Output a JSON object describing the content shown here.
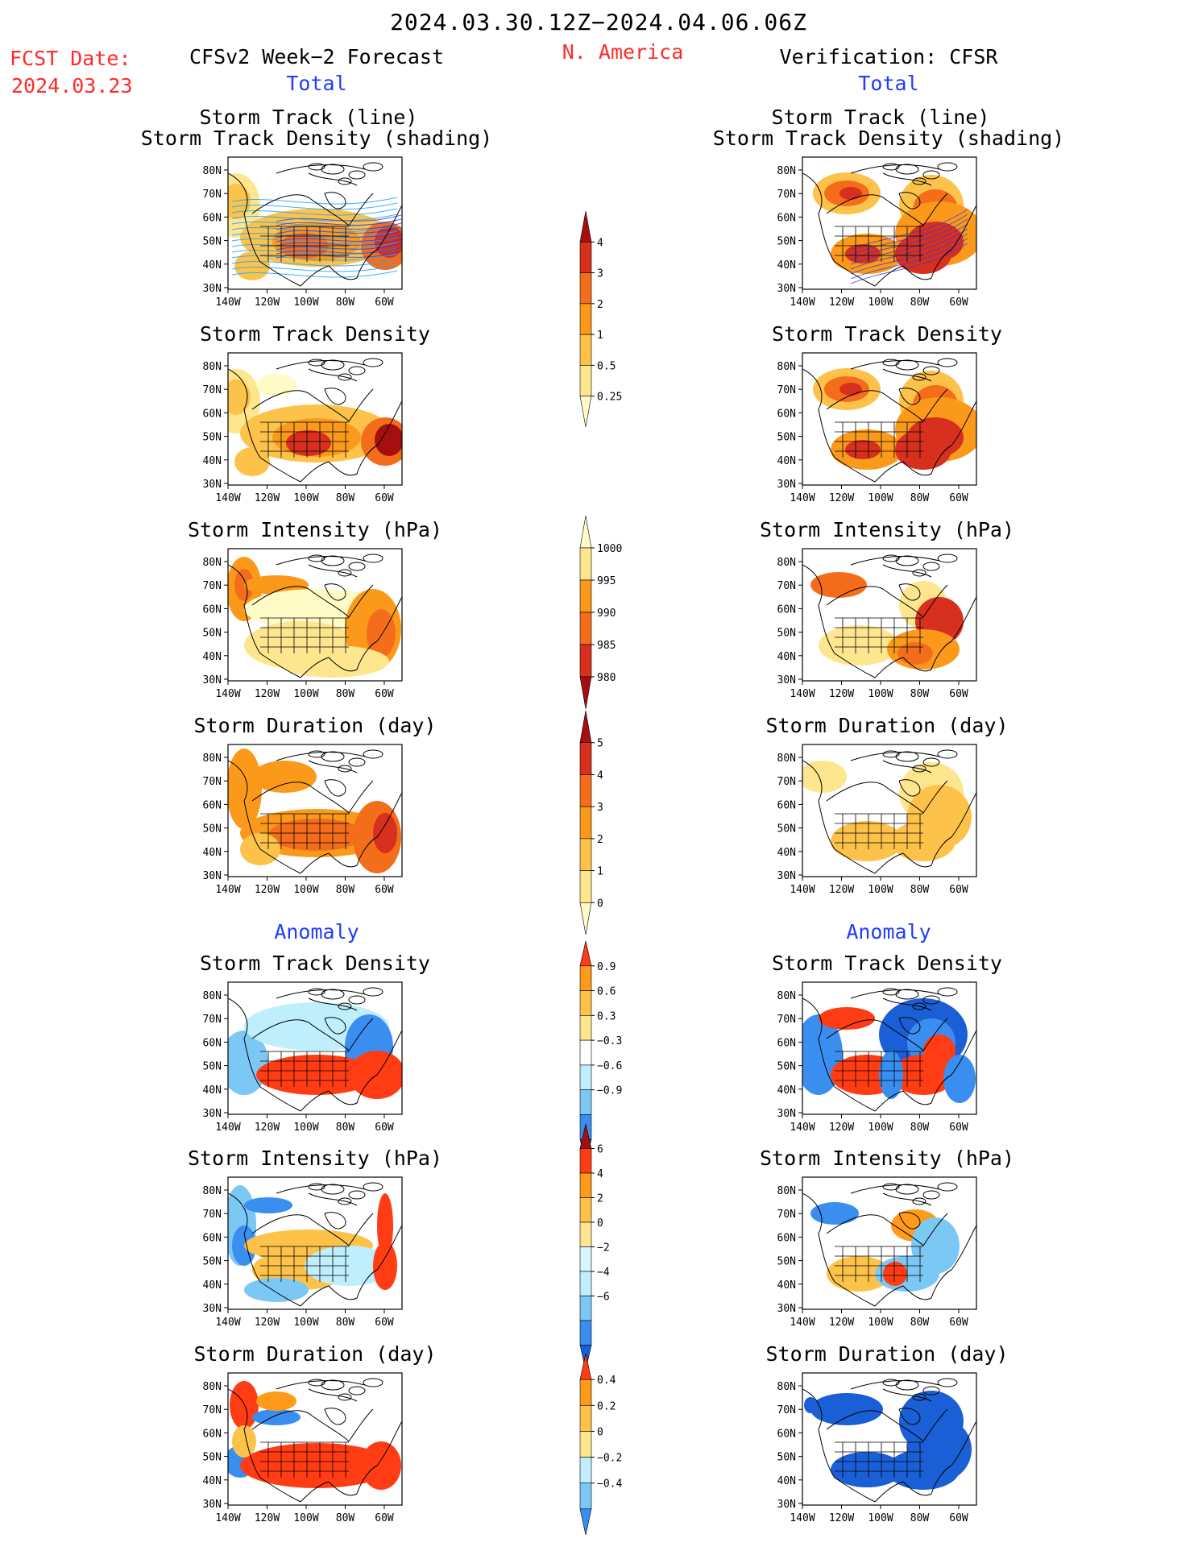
{
  "header": {
    "period": "2024.03.30.12Z−2024.04.06.06Z",
    "fcst_label": "FCST Date:",
    "fcst_date": "2024.03.23",
    "region": "N. America",
    "left_title": "CFSv2 Week−2 Forecast",
    "right_title": "Verification: CFSR",
    "total_label": "Total",
    "anomaly_label": "Anomaly"
  },
  "axis": {
    "lat_ticks": [
      "80N",
      "70N",
      "60N",
      "50N",
      "40N",
      "30N"
    ],
    "lon_ticks": [
      "140W",
      "120W",
      "100W",
      "80W",
      "60W"
    ]
  },
  "panels": {
    "r1_title_1": "Storm Track (line)",
    "r1_title_2": "Storm Track Density (shading)",
    "r2_title": "Storm Track Density",
    "r3_title": "Storm Intensity (hPa)",
    "r4_title": "Storm Duration (day)",
    "r5_title": "Storm Track Density",
    "r6_title": "Storm Intensity (hPa)",
    "r7_title": "Storm Duration (day)"
  },
  "colorbars": [
    {
      "name": "density-total",
      "labels": [
        "4",
        "3",
        "2",
        "1",
        "0.5",
        "0.25"
      ],
      "colors": [
        "#a50f0f",
        "#d7301f",
        "#f46d1b",
        "#fb9a1a",
        "#fdc24a",
        "#fee68f",
        "#fffbc6"
      ]
    },
    {
      "name": "intensity-total",
      "labels": [
        "1000",
        "995",
        "990",
        "985",
        "980"
      ],
      "colors": [
        "#fffbc6",
        "#fee68f",
        "#fb9a1a",
        "#f46d1b",
        "#d7301f",
        "#a50f0f"
      ]
    },
    {
      "name": "duration-total",
      "labels": [
        "5",
        "4",
        "3",
        "2",
        "1",
        "0"
      ],
      "colors": [
        "#a50f0f",
        "#d7301f",
        "#f46d1b",
        "#fb9a1a",
        "#fdc24a",
        "#fee68f",
        "#fffbc6"
      ]
    },
    {
      "name": "density-anomaly",
      "labels": [
        "0.9",
        "0.6",
        "0.3",
        "−0.3",
        "−0.6",
        "−0.9"
      ],
      "colors": [
        "#ff3c14",
        "#ff9a1a",
        "#fdc24a",
        "#fee68f",
        "#ffffff",
        "#bfeefc",
        "#7cc8f5",
        "#3a8ef0",
        "#1a5fd6"
      ]
    },
    {
      "name": "intensity-anomaly",
      "labels": [
        "6",
        "4",
        "2",
        "0",
        "−2",
        "−4",
        "−6"
      ],
      "colors": [
        "#a50f0f",
        "#ff3c14",
        "#ff9a1a",
        "#fdc24a",
        "#fee68f",
        "#d9f6ff",
        "#bfeefc",
        "#7cc8f5",
        "#3a8ef0",
        "#1a5fd6"
      ]
    },
    {
      "name": "duration-anomaly",
      "labels": [
        "0.4",
        "0.2",
        "0",
        "−0.2",
        "−0.4"
      ],
      "colors": [
        "#ff3c14",
        "#ff9a1a",
        "#fdc24a",
        "#fee68f",
        "#bfeefc",
        "#7cc8f5",
        "#3a8ef0"
      ]
    }
  ],
  "colors": {
    "red_text": "#ff2a2a",
    "blue_text": "#1f3cff"
  }
}
